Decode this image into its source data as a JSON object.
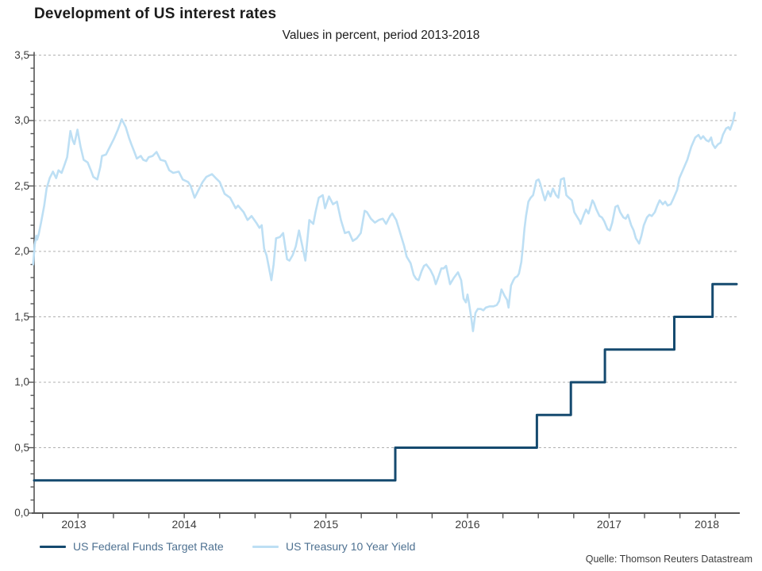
{
  "header": {
    "title": "Development of US interest rates",
    "subtitle": "Values in percent, period 2013-2018"
  },
  "source": "Quelle: Thomson Reuters Datastream",
  "legend": {
    "position": "bottom-left",
    "items": [
      {
        "label": "US Federal Funds Target Rate",
        "color": "#154a6f"
      },
      {
        "label": "US Treasury 10 Year Yield",
        "color": "#bddff4"
      }
    ]
  },
  "colors": {
    "axis": "#555555",
    "grid": "#b0b0b0",
    "tick_text": "#3d3d3d",
    "fed_funds_line": "#154a6f",
    "treasury_line": "#bddff4"
  },
  "chart_data": {
    "type": "line",
    "title": "Development of US interest rates",
    "subtitle": "Values in percent, period 2013-2018",
    "xlabel": "",
    "ylabel": "",
    "xlim": [
      2013.44,
      2018.4
    ],
    "ylim": [
      0,
      3.5
    ],
    "grid": "horizontal-dashed",
    "legend_position": "bottom",
    "y_ticks": [
      {
        "value": 0.0,
        "label": "0,0"
      },
      {
        "value": 0.5,
        "label": "0,5"
      },
      {
        "value": 1.0,
        "label": "1,0"
      },
      {
        "value": 1.5,
        "label": "1,5"
      },
      {
        "value": 2.0,
        "label": "2,0"
      },
      {
        "value": 2.5,
        "label": "2,5"
      },
      {
        "value": 3.0,
        "label": "3,0"
      },
      {
        "value": 3.5,
        "label": "3,5"
      }
    ],
    "y_minor_step": 0.1,
    "x_minor_ticks": [
      2013.5,
      2013.75,
      2014.0,
      2014.25,
      2014.5,
      2014.75,
      2015.0,
      2015.25,
      2015.5,
      2015.75,
      2016.0,
      2016.25,
      2016.5,
      2016.75,
      2017.0,
      2017.25,
      2017.5,
      2017.75,
      2018.0,
      2018.25
    ],
    "x_ticks": [
      {
        "pos": 2013.72,
        "label": "2013"
      },
      {
        "pos": 2014.5,
        "label": "2014"
      },
      {
        "pos": 2015.5,
        "label": "2015"
      },
      {
        "pos": 2016.5,
        "label": "2016"
      },
      {
        "pos": 2017.5,
        "label": "2017"
      },
      {
        "pos": 2018.19,
        "label": "2018"
      }
    ],
    "series": [
      {
        "name": "US Federal Funds Target Rate",
        "type": "step",
        "color": "#154a6f",
        "stroke_width": 3,
        "points": [
          [
            2013.44,
            0.25
          ],
          [
            2015.99,
            0.25
          ],
          [
            2015.99,
            0.5
          ],
          [
            2016.99,
            0.5
          ],
          [
            2016.99,
            0.75
          ],
          [
            2017.23,
            0.75
          ],
          [
            2017.23,
            1.0
          ],
          [
            2017.47,
            1.0
          ],
          [
            2017.47,
            1.25
          ],
          [
            2017.96,
            1.25
          ],
          [
            2017.96,
            1.5
          ],
          [
            2018.23,
            1.5
          ],
          [
            2018.23,
            1.75
          ],
          [
            2018.4,
            1.75
          ]
        ]
      },
      {
        "name": "US Treasury 10 Year Yield",
        "type": "line",
        "color": "#bddff4",
        "stroke_width": 2.6,
        "points": [
          [
            2013.433,
            1.9
          ],
          [
            2013.444,
            2.05
          ],
          [
            2013.455,
            2.12
          ],
          [
            2013.461,
            2.09
          ],
          [
            2013.472,
            2.13
          ],
          [
            2013.489,
            2.22
          ],
          [
            2013.511,
            2.35
          ],
          [
            2013.528,
            2.48
          ],
          [
            2013.55,
            2.56
          ],
          [
            2013.573,
            2.61
          ],
          [
            2013.595,
            2.56
          ],
          [
            2013.612,
            2.62
          ],
          [
            2013.634,
            2.6
          ],
          [
            2013.651,
            2.65
          ],
          [
            2013.673,
            2.72
          ],
          [
            2013.696,
            2.92
          ],
          [
            2013.712,
            2.85
          ],
          [
            2013.724,
            2.82
          ],
          [
            2013.746,
            2.93
          ],
          [
            2013.768,
            2.8
          ],
          [
            2013.79,
            2.7
          ],
          [
            2013.818,
            2.68
          ],
          [
            2013.841,
            2.62
          ],
          [
            2013.858,
            2.57
          ],
          [
            2013.886,
            2.55
          ],
          [
            2013.908,
            2.65
          ],
          [
            2013.919,
            2.73
          ],
          [
            2013.947,
            2.74
          ],
          [
            2013.975,
            2.8
          ],
          [
            2014.003,
            2.86
          ],
          [
            2014.031,
            2.93
          ],
          [
            2014.059,
            3.01
          ],
          [
            2014.087,
            2.95
          ],
          [
            2014.109,
            2.87
          ],
          [
            2014.126,
            2.82
          ],
          [
            2014.148,
            2.76
          ],
          [
            2014.165,
            2.71
          ],
          [
            2014.193,
            2.73
          ],
          [
            2014.21,
            2.7
          ],
          [
            2014.232,
            2.69
          ],
          [
            2014.249,
            2.72
          ],
          [
            2014.277,
            2.73
          ],
          [
            2014.304,
            2.76
          ],
          [
            2014.332,
            2.7
          ],
          [
            2014.366,
            2.69
          ],
          [
            2014.394,
            2.62
          ],
          [
            2014.422,
            2.6
          ],
          [
            2014.461,
            2.61
          ],
          [
            2014.489,
            2.55
          ],
          [
            2014.528,
            2.53
          ],
          [
            2014.545,
            2.5
          ],
          [
            2014.573,
            2.41
          ],
          [
            2014.601,
            2.47
          ],
          [
            2014.629,
            2.53
          ],
          [
            2014.656,
            2.57
          ],
          [
            2014.696,
            2.59
          ],
          [
            2014.723,
            2.56
          ],
          [
            2014.751,
            2.53
          ],
          [
            2014.785,
            2.44
          ],
          [
            2014.824,
            2.41
          ],
          [
            2014.863,
            2.33
          ],
          [
            2014.88,
            2.35
          ],
          [
            2014.919,
            2.3
          ],
          [
            2014.947,
            2.24
          ],
          [
            2014.975,
            2.27
          ],
          [
            2015.008,
            2.22
          ],
          [
            2015.031,
            2.18
          ],
          [
            2015.047,
            2.2
          ],
          [
            2015.064,
            2.02
          ],
          [
            2015.081,
            1.97
          ],
          [
            2015.115,
            1.78
          ],
          [
            2015.131,
            1.9
          ],
          [
            2015.148,
            2.1
          ],
          [
            2015.176,
            2.11
          ],
          [
            2015.198,
            2.14
          ],
          [
            2015.226,
            1.94
          ],
          [
            2015.243,
            1.93
          ],
          [
            2015.265,
            1.97
          ],
          [
            2015.288,
            2.04
          ],
          [
            2015.31,
            2.16
          ],
          [
            2015.332,
            2.05
          ],
          [
            2015.355,
            1.93
          ],
          [
            2015.383,
            2.24
          ],
          [
            2015.411,
            2.21
          ],
          [
            2015.427,
            2.3
          ],
          [
            2015.45,
            2.41
          ],
          [
            2015.478,
            2.43
          ],
          [
            2015.494,
            2.33
          ],
          [
            2015.522,
            2.42
          ],
          [
            2015.55,
            2.36
          ],
          [
            2015.578,
            2.38
          ],
          [
            2015.606,
            2.24
          ],
          [
            2015.634,
            2.14
          ],
          [
            2015.662,
            2.15
          ],
          [
            2015.69,
            2.08
          ],
          [
            2015.718,
            2.1
          ],
          [
            2015.746,
            2.14
          ],
          [
            2015.774,
            2.31
          ],
          [
            2015.79,
            2.3
          ],
          [
            2015.818,
            2.25
          ],
          [
            2015.846,
            2.22
          ],
          [
            2015.874,
            2.24
          ],
          [
            2015.902,
            2.25
          ],
          [
            2015.925,
            2.21
          ],
          [
            2015.953,
            2.27
          ],
          [
            2015.969,
            2.29
          ],
          [
            2015.997,
            2.24
          ],
          [
            2016.025,
            2.14
          ],
          [
            2016.053,
            2.04
          ],
          [
            2016.07,
            1.96
          ],
          [
            2016.098,
            1.91
          ],
          [
            2016.12,
            1.82
          ],
          [
            2016.137,
            1.79
          ],
          [
            2016.154,
            1.78
          ],
          [
            2016.176,
            1.85
          ],
          [
            2016.193,
            1.89
          ],
          [
            2016.209,
            1.9
          ],
          [
            2016.237,
            1.86
          ],
          [
            2016.26,
            1.81
          ],
          [
            2016.276,
            1.75
          ],
          [
            2016.293,
            1.8
          ],
          [
            2016.315,
            1.87
          ],
          [
            2016.332,
            1.87
          ],
          [
            2016.349,
            1.89
          ],
          [
            2016.377,
            1.75
          ],
          [
            2016.405,
            1.8
          ],
          [
            2016.433,
            1.84
          ],
          [
            2016.455,
            1.78
          ],
          [
            2016.472,
            1.64
          ],
          [
            2016.489,
            1.61
          ],
          [
            2016.5,
            1.67
          ],
          [
            2016.511,
            1.6
          ],
          [
            2016.528,
            1.48
          ],
          [
            2016.539,
            1.39
          ],
          [
            2016.545,
            1.44
          ],
          [
            2016.556,
            1.53
          ],
          [
            2016.573,
            1.56
          ],
          [
            2016.595,
            1.56
          ],
          [
            2016.612,
            1.55
          ],
          [
            2016.629,
            1.57
          ],
          [
            2016.656,
            1.58
          ],
          [
            2016.684,
            1.58
          ],
          [
            2016.707,
            1.59
          ],
          [
            2016.723,
            1.62
          ],
          [
            2016.74,
            1.71
          ],
          [
            2016.762,
            1.66
          ],
          [
            2016.779,
            1.63
          ],
          [
            2016.79,
            1.57
          ],
          [
            2016.807,
            1.74
          ],
          [
            2016.824,
            1.78
          ],
          [
            2016.835,
            1.8
          ],
          [
            2016.852,
            1.81
          ],
          [
            2016.863,
            1.83
          ],
          [
            2016.88,
            1.92
          ],
          [
            2016.891,
            2.04
          ],
          [
            2016.902,
            2.17
          ],
          [
            2016.913,
            2.27
          ],
          [
            2016.93,
            2.38
          ],
          [
            2016.946,
            2.41
          ],
          [
            2016.963,
            2.43
          ],
          [
            2016.986,
            2.54
          ],
          [
            2017.002,
            2.55
          ],
          [
            2017.013,
            2.52
          ],
          [
            2017.03,
            2.45
          ],
          [
            2017.047,
            2.39
          ],
          [
            2017.069,
            2.46
          ],
          [
            2017.086,
            2.42
          ],
          [
            2017.103,
            2.48
          ],
          [
            2017.125,
            2.43
          ],
          [
            2017.142,
            2.41
          ],
          [
            2017.159,
            2.55
          ],
          [
            2017.181,
            2.56
          ],
          [
            2017.198,
            2.43
          ],
          [
            2017.215,
            2.41
          ],
          [
            2017.237,
            2.39
          ],
          [
            2017.254,
            2.3
          ],
          [
            2017.27,
            2.27
          ],
          [
            2017.293,
            2.23
          ],
          [
            2017.298,
            2.21
          ],
          [
            2017.321,
            2.28
          ],
          [
            2017.337,
            2.32
          ],
          [
            2017.354,
            2.29
          ],
          [
            2017.382,
            2.39
          ],
          [
            2017.393,
            2.37
          ],
          [
            2017.41,
            2.32
          ],
          [
            2017.432,
            2.27
          ],
          [
            2017.449,
            2.26
          ],
          [
            2017.466,
            2.23
          ],
          [
            2017.488,
            2.17
          ],
          [
            2017.505,
            2.16
          ],
          [
            2017.522,
            2.22
          ],
          [
            2017.544,
            2.34
          ],
          [
            2017.561,
            2.35
          ],
          [
            2017.578,
            2.3
          ],
          [
            2017.6,
            2.26
          ],
          [
            2017.617,
            2.25
          ],
          [
            2017.633,
            2.28
          ],
          [
            2017.656,
            2.2
          ],
          [
            2017.673,
            2.16
          ],
          [
            2017.689,
            2.1
          ],
          [
            2017.712,
            2.06
          ],
          [
            2017.728,
            2.12
          ],
          [
            2017.745,
            2.2
          ],
          [
            2017.767,
            2.26
          ],
          [
            2017.784,
            2.28
          ],
          [
            2017.801,
            2.27
          ],
          [
            2017.823,
            2.3
          ],
          [
            2017.84,
            2.35
          ],
          [
            2017.857,
            2.39
          ],
          [
            2017.879,
            2.36
          ],
          [
            2017.896,
            2.38
          ],
          [
            2017.913,
            2.35
          ],
          [
            2017.935,
            2.36
          ],
          [
            2017.952,
            2.4
          ],
          [
            2017.98,
            2.47
          ],
          [
            2017.996,
            2.56
          ],
          [
            2018.024,
            2.63
          ],
          [
            2018.052,
            2.7
          ],
          [
            2018.08,
            2.8
          ],
          [
            2018.108,
            2.87
          ],
          [
            2018.131,
            2.89
          ],
          [
            2018.147,
            2.86
          ],
          [
            2018.164,
            2.88
          ],
          [
            2018.186,
            2.85
          ],
          [
            2018.203,
            2.84
          ],
          [
            2018.22,
            2.87
          ],
          [
            2018.231,
            2.82
          ],
          [
            2018.248,
            2.79
          ],
          [
            2018.27,
            2.82
          ],
          [
            2018.287,
            2.83
          ],
          [
            2018.303,
            2.89
          ],
          [
            2018.326,
            2.94
          ],
          [
            2018.343,
            2.95
          ],
          [
            2018.354,
            2.93
          ],
          [
            2018.371,
            2.98
          ],
          [
            2018.382,
            3.03
          ],
          [
            2018.387,
            3.06
          ]
        ]
      }
    ]
  }
}
